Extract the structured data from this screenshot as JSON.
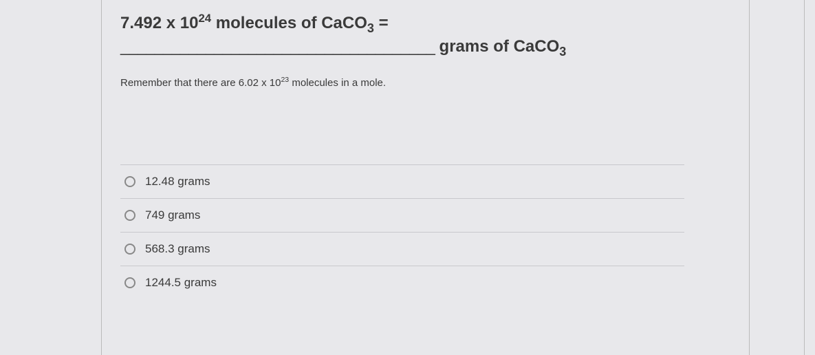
{
  "question": {
    "coefficient": "7.492",
    "exponent": "24",
    "compound": "CaCO",
    "compound_sub": "3",
    "equals": "=",
    "molecules_text": "molecules of",
    "blank_dashes": "_____________________________________",
    "grams_text": "grams of",
    "hint_prefix": "Remember that there are 6.02 x 10",
    "hint_exp": "23",
    "hint_suffix": " molecules in a mole."
  },
  "options": [
    {
      "label": "12.48 grams"
    },
    {
      "label": "749 grams"
    },
    {
      "label": "568.3 grams"
    },
    {
      "label": "1244.5 grams"
    }
  ],
  "colors": {
    "text": "#3a3a3a",
    "border": "#c8c8cc",
    "radio_border": "#888888",
    "background": "#e8e8eb"
  },
  "typography": {
    "question_fontsize": 24,
    "question_weight": 700,
    "hint_fontsize": 15,
    "option_fontsize": 17
  }
}
